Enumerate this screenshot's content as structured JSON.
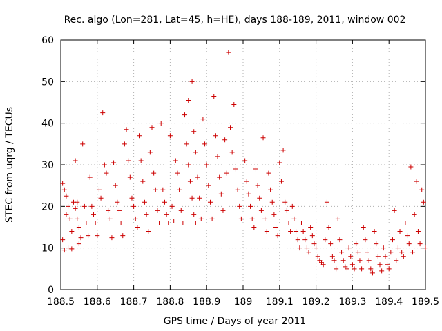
{
  "chart_data": {
    "type": "scatter",
    "title": "Rec. algo (Lon=281, Lat=45, h=HE), days 188-189, 2011, window 002",
    "xlabel": "GPS time / Days of year 2011",
    "ylabel": "STEC from uqrg / TECUs",
    "xlim": [
      188.5,
      189.5
    ],
    "ylim": [
      0,
      60
    ],
    "x_ticks": [
      "188.5",
      "188.6",
      "188.7",
      "188.8",
      "188.9",
      "189",
      "189.1",
      "189.2",
      "189.3",
      "189.4",
      "189.5"
    ],
    "y_ticks": [
      "0",
      "10",
      "20",
      "30",
      "40",
      "50",
      "60"
    ],
    "grid": true,
    "marker": "+",
    "color": "#cc0000",
    "points": [
      [
        188.505,
        25.5
      ],
      [
        188.51,
        24
      ],
      [
        188.515,
        22.5
      ],
      [
        188.52,
        20
      ],
      [
        188.525,
        17
      ],
      [
        188.53,
        14
      ],
      [
        188.505,
        12
      ],
      [
        188.51,
        9.5
      ],
      [
        188.52,
        10
      ],
      [
        188.53,
        9.8
      ],
      [
        188.515,
        18
      ],
      [
        188.535,
        21
      ],
      [
        188.54,
        19.5
      ],
      [
        188.545,
        17
      ],
      [
        188.55,
        15
      ],
      [
        188.555,
        12.5
      ],
      [
        188.54,
        31
      ],
      [
        188.545,
        21
      ],
      [
        188.55,
        11
      ],
      [
        188.56,
        35
      ],
      [
        188.565,
        20
      ],
      [
        188.57,
        16
      ],
      [
        188.575,
        13
      ],
      [
        188.58,
        27
      ],
      [
        188.585,
        20
      ],
      [
        188.59,
        18
      ],
      [
        188.595,
        16
      ],
      [
        188.6,
        13
      ],
      [
        188.605,
        24
      ],
      [
        188.61,
        22
      ],
      [
        188.615,
        42.5
      ],
      [
        188.62,
        30
      ],
      [
        188.625,
        28
      ],
      [
        188.63,
        19
      ],
      [
        188.635,
        17
      ],
      [
        188.64,
        12.5
      ],
      [
        188.645,
        30.5
      ],
      [
        188.65,
        25
      ],
      [
        188.655,
        21
      ],
      [
        188.66,
        19
      ],
      [
        188.665,
        16
      ],
      [
        188.67,
        13
      ],
      [
        188.675,
        35
      ],
      [
        188.68,
        38.5
      ],
      [
        188.685,
        31
      ],
      [
        188.69,
        27
      ],
      [
        188.695,
        22
      ],
      [
        188.7,
        20
      ],
      [
        188.705,
        17
      ],
      [
        188.71,
        15
      ],
      [
        188.715,
        37
      ],
      [
        188.72,
        31
      ],
      [
        188.725,
        26
      ],
      [
        188.73,
        21
      ],
      [
        188.735,
        18
      ],
      [
        188.74,
        14
      ],
      [
        188.745,
        33
      ],
      [
        188.75,
        39
      ],
      [
        188.755,
        28
      ],
      [
        188.76,
        24
      ],
      [
        188.765,
        19
      ],
      [
        188.77,
        16
      ],
      [
        188.775,
        40
      ],
      [
        188.78,
        24
      ],
      [
        188.785,
        21
      ],
      [
        188.79,
        18
      ],
      [
        188.795,
        16
      ],
      [
        188.8,
        37
      ],
      [
        188.805,
        20
      ],
      [
        188.81,
        16.5
      ],
      [
        188.815,
        31
      ],
      [
        188.82,
        28
      ],
      [
        188.825,
        24
      ],
      [
        188.83,
        19
      ],
      [
        188.835,
        16
      ],
      [
        188.84,
        42
      ],
      [
        188.845,
        35
      ],
      [
        188.85,
        30
      ],
      [
        188.855,
        26
      ],
      [
        188.86,
        22
      ],
      [
        188.865,
        18
      ],
      [
        188.87,
        16
      ],
      [
        188.85,
        45.5
      ],
      [
        188.86,
        50
      ],
      [
        188.865,
        38
      ],
      [
        188.87,
        33
      ],
      [
        188.875,
        27
      ],
      [
        188.88,
        22
      ],
      [
        188.885,
        17
      ],
      [
        188.89,
        41
      ],
      [
        188.895,
        35
      ],
      [
        188.9,
        30
      ],
      [
        188.905,
        25
      ],
      [
        188.91,
        21
      ],
      [
        188.915,
        17
      ],
      [
        188.92,
        46.5
      ],
      [
        188.925,
        37
      ],
      [
        188.93,
        32
      ],
      [
        188.935,
        27
      ],
      [
        188.94,
        23
      ],
      [
        188.945,
        19
      ],
      [
        188.95,
        36
      ],
      [
        188.955,
        28
      ],
      [
        188.96,
        57
      ],
      [
        188.965,
        39
      ],
      [
        188.97,
        33
      ],
      [
        188.975,
        44.5
      ],
      [
        188.98,
        29
      ],
      [
        188.985,
        24
      ],
      [
        188.99,
        20
      ],
      [
        188.995,
        17
      ],
      [
        189.005,
        31
      ],
      [
        189.01,
        26
      ],
      [
        189.015,
        23
      ],
      [
        189.02,
        20
      ],
      [
        189.025,
        17
      ],
      [
        189.03,
        15
      ],
      [
        189.035,
        29
      ],
      [
        189.04,
        25
      ],
      [
        189.045,
        22
      ],
      [
        189.05,
        19
      ],
      [
        189.055,
        36.5
      ],
      [
        189.06,
        17
      ],
      [
        189.065,
        14
      ],
      [
        189.07,
        28
      ],
      [
        189.075,
        24
      ],
      [
        189.08,
        21
      ],
      [
        189.085,
        18
      ],
      [
        189.09,
        15
      ],
      [
        189.095,
        13
      ],
      [
        189.1,
        30.5
      ],
      [
        189.105,
        26
      ],
      [
        189.11,
        33.5
      ],
      [
        189.115,
        21
      ],
      [
        189.12,
        19
      ],
      [
        189.125,
        16
      ],
      [
        189.13,
        14
      ],
      [
        189.135,
        20
      ],
      [
        189.14,
        17
      ],
      [
        189.145,
        14
      ],
      [
        189.15,
        12
      ],
      [
        189.155,
        10
      ],
      [
        189.16,
        16
      ],
      [
        189.165,
        14
      ],
      [
        189.17,
        12
      ],
      [
        189.175,
        10
      ],
      [
        189.18,
        9
      ],
      [
        189.185,
        15
      ],
      [
        189.19,
        13
      ],
      [
        189.195,
        11
      ],
      [
        189.2,
        10
      ],
      [
        189.205,
        8
      ],
      [
        189.21,
        7
      ],
      [
        189.215,
        6.5
      ],
      [
        189.22,
        6
      ],
      [
        189.225,
        12
      ],
      [
        189.23,
        21
      ],
      [
        189.235,
        15
      ],
      [
        189.24,
        11
      ],
      [
        189.245,
        8
      ],
      [
        189.25,
        7
      ],
      [
        189.255,
        5
      ],
      [
        189.26,
        17
      ],
      [
        189.265,
        12
      ],
      [
        189.27,
        9
      ],
      [
        189.275,
        7
      ],
      [
        189.28,
        5.5
      ],
      [
        189.285,
        5
      ],
      [
        189.29,
        10
      ],
      [
        189.295,
        8
      ],
      [
        189.3,
        6
      ],
      [
        189.305,
        5
      ],
      [
        189.31,
        11
      ],
      [
        189.315,
        9
      ],
      [
        189.32,
        7
      ],
      [
        189.325,
        5
      ],
      [
        189.33,
        15
      ],
      [
        189.335,
        12
      ],
      [
        189.34,
        9
      ],
      [
        189.345,
        7
      ],
      [
        189.35,
        5
      ],
      [
        189.355,
        4
      ],
      [
        189.36,
        14
      ],
      [
        189.365,
        11
      ],
      [
        189.37,
        8
      ],
      [
        189.375,
        6
      ],
      [
        189.38,
        4.5
      ],
      [
        189.385,
        10
      ],
      [
        189.39,
        8
      ],
      [
        189.395,
        6
      ],
      [
        189.4,
        5
      ],
      [
        189.405,
        9
      ],
      [
        189.41,
        12
      ],
      [
        189.415,
        19
      ],
      [
        189.42,
        7
      ],
      [
        189.425,
        10
      ],
      [
        189.43,
        14
      ],
      [
        189.435,
        9
      ],
      [
        189.44,
        8
      ],
      [
        189.445,
        16
      ],
      [
        189.45,
        13
      ],
      [
        189.455,
        11
      ],
      [
        189.46,
        29.5
      ],
      [
        189.465,
        9
      ],
      [
        189.47,
        18
      ],
      [
        189.475,
        26
      ],
      [
        189.48,
        14
      ],
      [
        189.485,
        11
      ],
      [
        189.49,
        24
      ],
      [
        189.495,
        21
      ],
      [
        189.5,
        10
      ]
    ]
  }
}
